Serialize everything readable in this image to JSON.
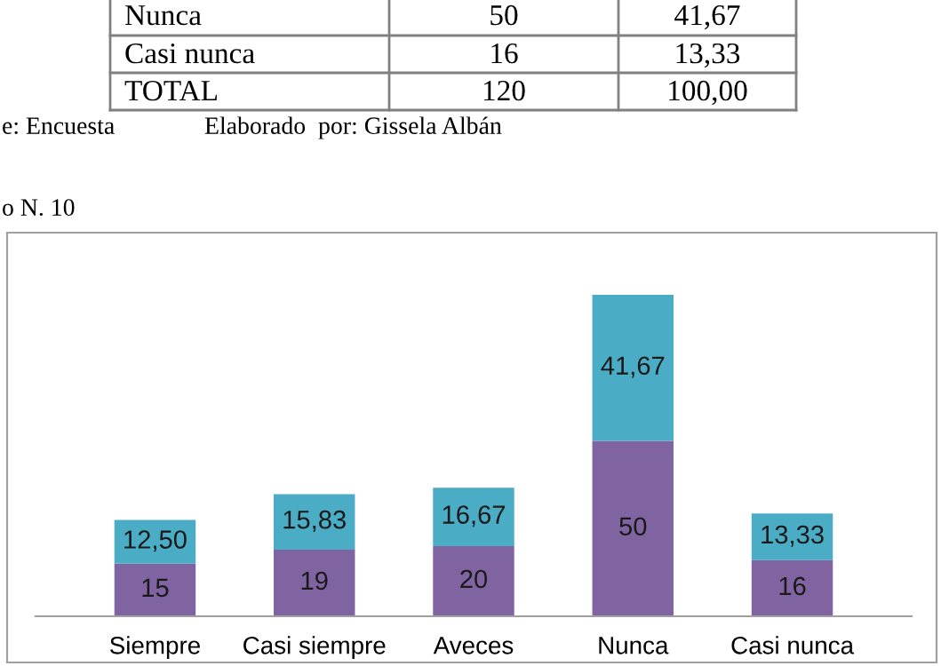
{
  "chart_data": {
    "type": "bar",
    "stacked": true,
    "data_labels": true,
    "legend": false,
    "grid": false,
    "categories": [
      "Siempre",
      "Casi siempre",
      "Aveces",
      "Nunca",
      "Casi nunca"
    ],
    "series": [
      {
        "color": "#8064a2",
        "values": [
          15,
          19,
          20,
          50,
          16
        ],
        "value_labels": [
          "15",
          "19",
          "20",
          "50",
          "16"
        ]
      },
      {
        "color": "#4bacc6",
        "values": [
          12.5,
          15.83,
          16.67,
          41.67,
          13.33
        ],
        "value_labels": [
          "12,50",
          "15,83",
          "16,67",
          "41,67",
          "13,33"
        ]
      }
    ],
    "annotations": [
      "Nunca",
      "50",
      "41,67",
      "Casi nunca",
      "16",
      "13,33",
      "TOTAL",
      "120",
      "100,00",
      "e: Encuesta",
      "Elaborado  por: Gissela Albán",
      "o N. 10"
    ]
  }
}
